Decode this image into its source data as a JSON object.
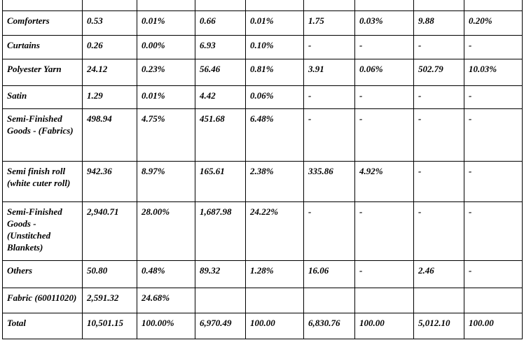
{
  "table": {
    "rows": [
      [
        "Comforters",
        "0.53",
        "0.01%",
        "0.66",
        "0.01%",
        "1.75",
        "0.03%",
        "9.88",
        "0.20%"
      ],
      [
        "Curtains",
        "0.26",
        "0.00%",
        "6.93",
        "0.10%",
        "-",
        "-",
        "-",
        "-"
      ],
      [
        "Polyester Yarn",
        "24.12",
        "0.23%",
        "56.46",
        "0.81%",
        "3.91",
        "0.06%",
        "502.79",
        "10.03%"
      ],
      [
        "Satin",
        "1.29",
        "0.01%",
        "4.42",
        "0.06%",
        "-",
        "-",
        "-",
        "-"
      ],
      [
        "Semi-Finished Goods - (Fabrics)",
        "498.94",
        "4.75%",
        "451.68",
        "6.48%",
        "-",
        "-",
        "-",
        "-"
      ],
      [
        "Semi finish roll (white cuter roll)",
        "942.36",
        "8.97%",
        "165.61",
        "2.38%",
        "335.86",
        "4.92%",
        "-",
        "-"
      ],
      [
        "Semi-Finished Goods - (Unstitched Blankets)",
        "2,940.71",
        "28.00%",
        "1,687.98",
        "24.22%",
        "-",
        "-",
        "-",
        "-"
      ],
      [
        "Others",
        "50.80",
        "0.48%",
        "89.32",
        "1.28%",
        "16.06",
        "-",
        "2.46",
        "-"
      ],
      [
        "Fabric (60011020)",
        "2,591.32",
        "24.68%"
      ],
      [
        "Total",
        "10,501.15",
        "100.00%",
        "6,970.49",
        "100.00",
        "6,830.76",
        "100.00",
        "5,012.10",
        "100.00"
      ]
    ]
  }
}
